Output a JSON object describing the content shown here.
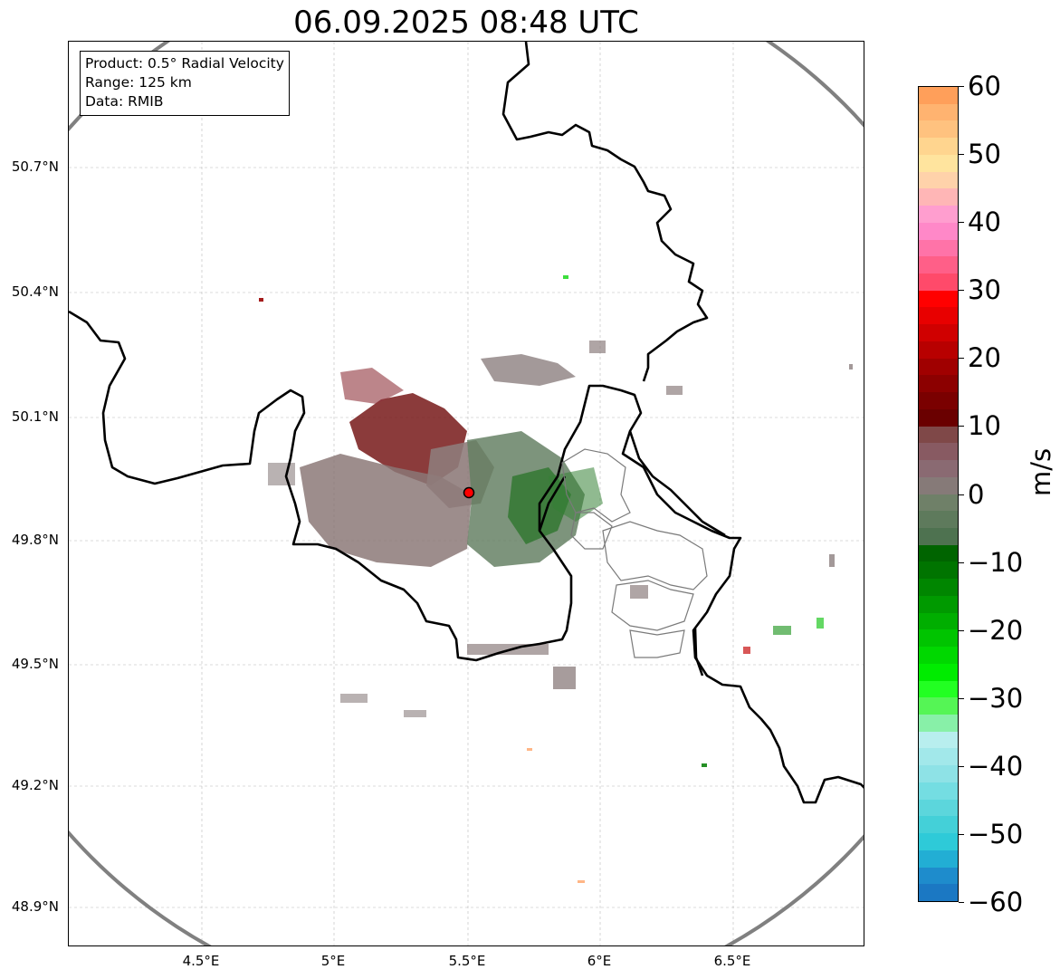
{
  "title": "06.09.2025 08:48 UTC",
  "info": {
    "product": "Product: 0.5° Radial Velocity",
    "range": "Range: 125 km",
    "data": "Data: RMIB"
  },
  "axes": {
    "lat_ticks": [
      "50.7°N",
      "50.4°N",
      "50.1°N",
      "49.8°N",
      "49.5°N",
      "49.2°N",
      "48.9°N"
    ],
    "lon_ticks": [
      "4.5°E",
      "5°E",
      "5.5°E",
      "6°E",
      "6.5°E"
    ]
  },
  "colorbar": {
    "unit": "m/s",
    "min": -60,
    "max": 60,
    "ticks": [
      "60",
      "50",
      "40",
      "30",
      "20",
      "10",
      "0",
      "−10",
      "−20",
      "−30",
      "−40",
      "−50",
      "−60"
    ],
    "tick_values": [
      60,
      50,
      40,
      30,
      20,
      10,
      0,
      -10,
      -20,
      -30,
      -40,
      -50,
      -60
    ],
    "colors_top_to_bottom": [
      "#ff9f5a",
      "#ffb370",
      "#ffc27f",
      "#ffd58f",
      "#ffe49e",
      "#ffd2aa",
      "#ffb6b6",
      "#ff9ecf",
      "#ff88c8",
      "#ff73a8",
      "#ff5f88",
      "#ff4a6a",
      "#ff0000",
      "#e80000",
      "#d00000",
      "#b80000",
      "#a00000",
      "#8c0000",
      "#7a0000",
      "#6a0000",
      "#7f4848",
      "#885a62",
      "#8a6a72",
      "#867a78",
      "#6f8068",
      "#5e7a5c",
      "#4e7250",
      "#006400",
      "#007400",
      "#008600",
      "#009a00",
      "#00ae00",
      "#00c400",
      "#00d800",
      "#00ec00",
      "#22ff22",
      "#55f555",
      "#88f0a8",
      "#b8eeee",
      "#a2e8ea",
      "#8ee2e6",
      "#74dde2",
      "#5cd6dc",
      "#44d0d8",
      "#2ecad8",
      "#22aed4",
      "#1e8ccc",
      "#1b78c3"
    ],
    "band_values": [
      60,
      57.5,
      55,
      52.5,
      50,
      47.5,
      45,
      42.5,
      40,
      37.5,
      35,
      32.5,
      30,
      27.5,
      25,
      22.5,
      20,
      17.5,
      15,
      12.5,
      10,
      7.5,
      5,
      2.5,
      0,
      -2.5,
      -5,
      -7.5,
      -10,
      -12.5,
      -15,
      -17.5,
      -20,
      -22.5,
      -25,
      -27.5,
      -30,
      -32.5,
      -35,
      -37.5,
      -40,
      -42.5,
      -45,
      -47.5,
      -50,
      -52.5,
      -55,
      -57.5
    ]
  },
  "map": {
    "lon_min": 4.0,
    "lon_max": 7.0,
    "lat_min": 48.8,
    "lat_max": 51.0,
    "radar_site": {
      "lon": 5.505,
      "lat": 49.915,
      "color": "#ff0000"
    },
    "range_ring_km": 125,
    "ring_color": "#808080",
    "border_color": "#000000",
    "admin_color": "#808080",
    "grid_color": "#b0b0b0"
  }
}
